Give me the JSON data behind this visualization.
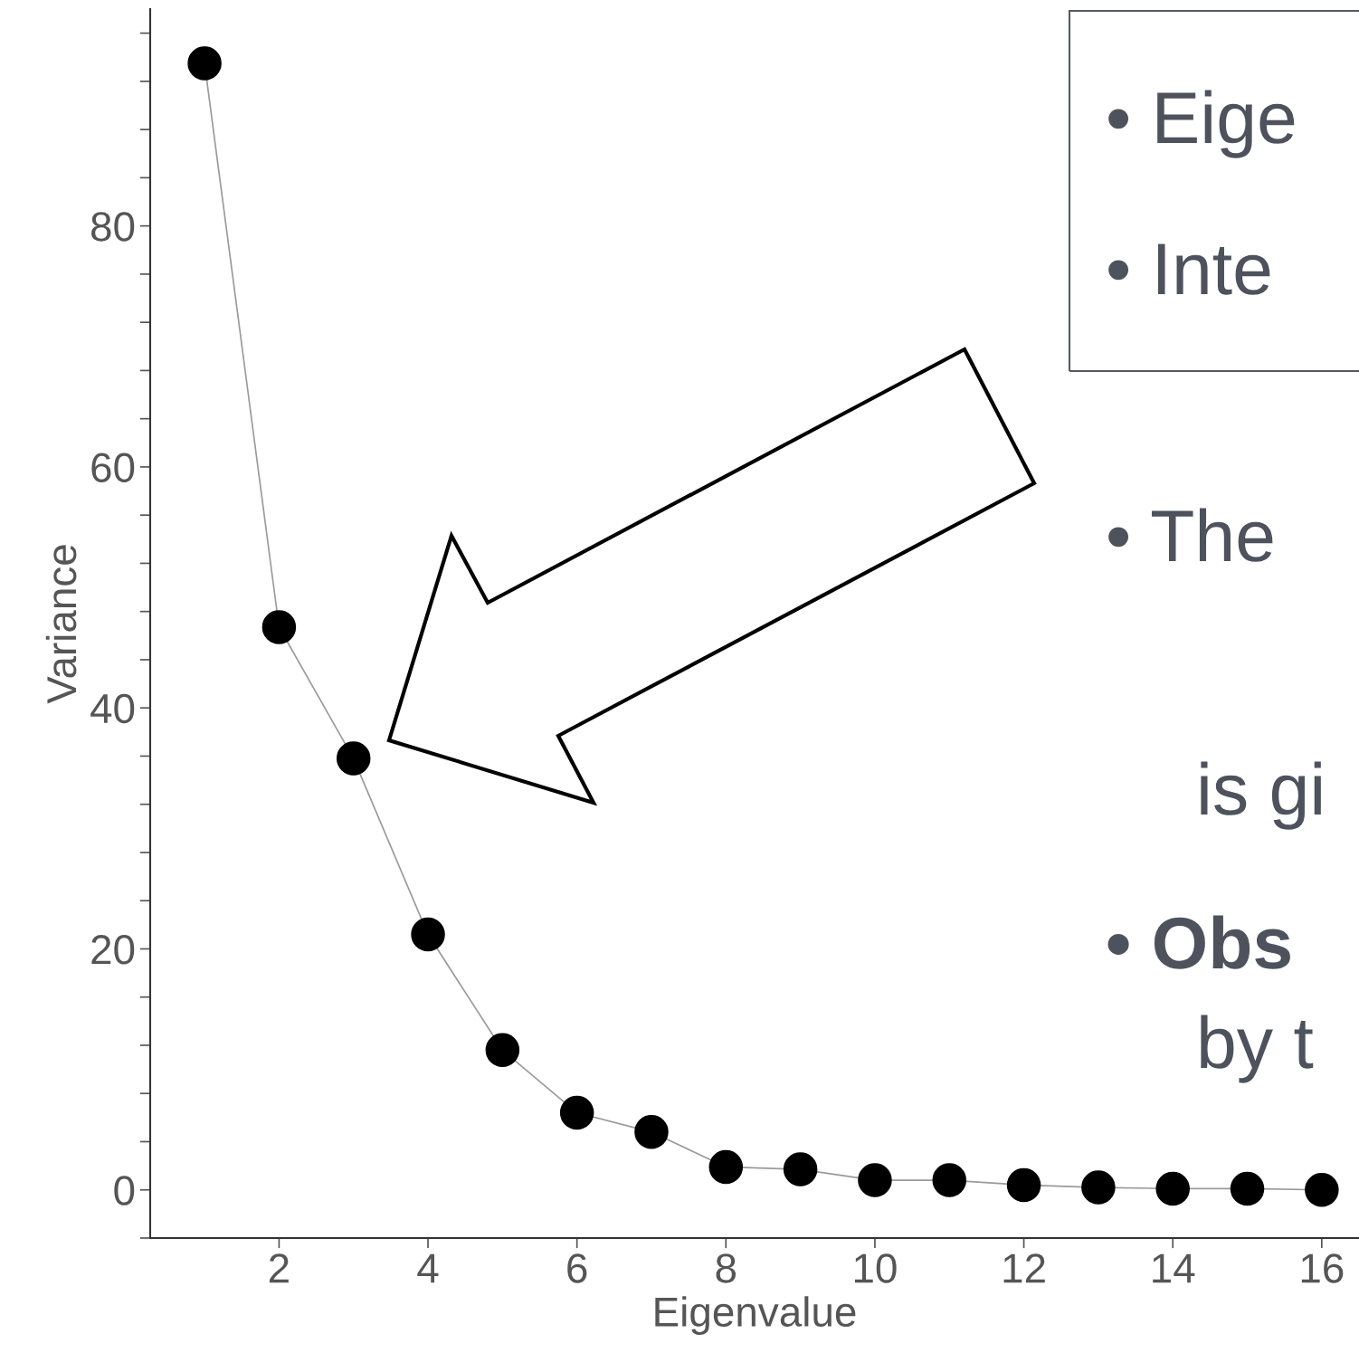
{
  "chart_data": {
    "type": "line",
    "xlabel": "Eigenvalue",
    "ylabel": "Variance",
    "x": [
      1,
      2,
      3,
      4,
      5,
      6,
      7,
      8,
      9,
      10,
      11,
      12,
      13,
      14,
      15,
      16
    ],
    "series": [
      {
        "color": "#000000",
        "values": [
          93.5,
          46.7,
          35.8,
          21.2,
          11.6,
          6.4,
          4.8,
          1.9,
          1.7,
          0.8,
          0.8,
          0.4,
          0.2,
          0.1,
          0.1,
          0.0
        ]
      }
    ],
    "marker": "circle",
    "line_style": "solid",
    "grid": false,
    "legend": false,
    "xlim": [
      0.27,
      16.5
    ],
    "ylim": [
      -4,
      98
    ],
    "xticks": [
      2,
      4,
      6,
      8,
      10,
      12,
      14,
      16
    ],
    "yticks": [
      {
        "value": -4,
        "label": null
      },
      0,
      {
        "value": 4,
        "label": null
      },
      {
        "value": 8,
        "label": null
      },
      {
        "value": 12,
        "label": null
      },
      {
        "value": 16,
        "label": null
      },
      20,
      {
        "value": 24,
        "label": null
      },
      {
        "value": 28,
        "label": null
      },
      {
        "value": 32,
        "label": null
      },
      {
        "value": 36,
        "label": null
      },
      40,
      {
        "value": 44,
        "label": null
      },
      {
        "value": 48,
        "label": null
      },
      {
        "value": 52,
        "label": null
      },
      {
        "value": 56,
        "label": null
      },
      60,
      {
        "value": 64,
        "label": null
      },
      {
        "value": 68,
        "label": null
      },
      {
        "value": 72,
        "label": null
      },
      {
        "value": 76,
        "label": null
      },
      80,
      {
        "value": 84,
        "label": null
      },
      {
        "value": 88,
        "label": null
      },
      {
        "value": 92,
        "label": null
      },
      {
        "value": 96,
        "label": null
      }
    ],
    "annotations": [
      "• Eige",
      "• Inte",
      "• The",
      "is gi",
      "• Obs",
      "by t"
    ]
  }
}
